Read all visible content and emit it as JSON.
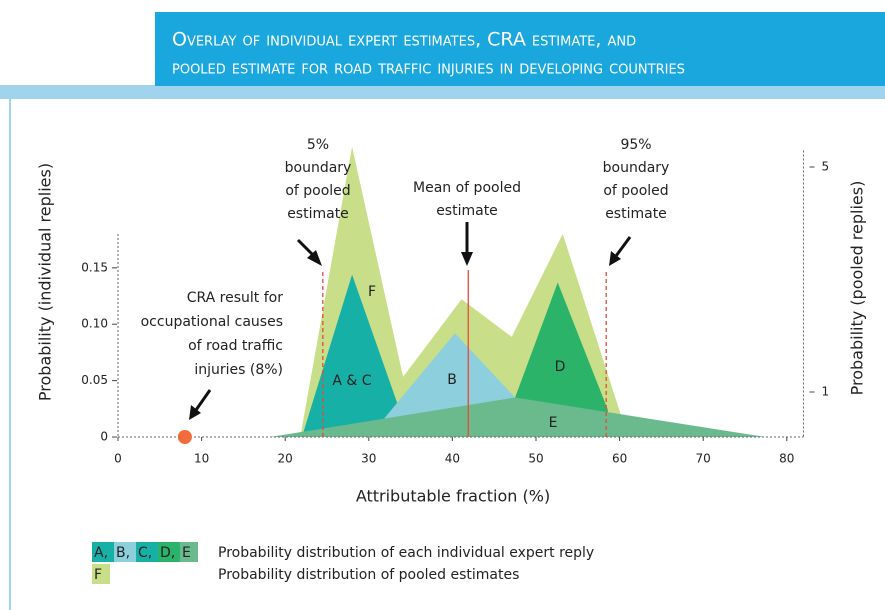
{
  "chart_data": {
    "type": "area",
    "title": [
      "Overlay of individual expert estimates, CRA estimate, and",
      "pooled estimate for road traffic injuries in developing countries"
    ],
    "xlabel": "Attributable fraction (%)",
    "ylabel": "Probability (individual replies)",
    "y2label": "Probability (pooled replies)",
    "xlim": [
      0,
      82
    ],
    "xticks": [
      0,
      10,
      20,
      30,
      40,
      50,
      60,
      70,
      80
    ],
    "ylim": [
      0,
      0.18
    ],
    "yticks": [
      0,
      0.05,
      {
        "value": 0.1,
        "label": "0.10"
      },
      0.15
    ],
    "y2lim": [
      0.2,
      5.4
    ],
    "y2ticks": [
      1,
      5
    ],
    "series": [
      {
        "name": "F",
        "color": "#c8de88",
        "axis": "y2",
        "x": [
          21.8,
          28,
          34.1,
          41.1,
          47.1,
          53.2,
          61
        ],
        "values": [
          0.2,
          5.36,
          1.27,
          2.65,
          1.98,
          3.81,
          0.2
        ]
      },
      {
        "name": "A & C",
        "color": "#16b0a6",
        "x": [
          22,
          28,
          33.5
        ],
        "values": [
          0,
          0.144,
          0.028
        ]
      },
      {
        "name": "B",
        "color": "#8dcfdc",
        "x": [
          31.9,
          40.3,
          47.5
        ],
        "values": [
          0.017,
          0.092,
          0.035
        ]
      },
      {
        "name": "D",
        "color": "#2cb36a",
        "x": [
          47.5,
          52.6,
          58.6
        ],
        "values": [
          0.035,
          0.137,
          0.024
        ]
      },
      {
        "name": "E",
        "color": "#6aba8d",
        "x": [
          18.2,
          47.5,
          77.4
        ],
        "values": [
          0,
          0.035,
          0
        ]
      }
    ],
    "reference_lines": [
      {
        "x": 24.5,
        "color": "#e84a3a",
        "dashed": true,
        "label": [
          "5%",
          "boundary",
          "of pooled",
          "estimate"
        ]
      },
      {
        "x": 41.9,
        "color": "#e84a3a",
        "dashed": false,
        "label": [
          "Mean of pooled",
          "estimate"
        ]
      },
      {
        "x": 58.4,
        "color": "#e84a3a",
        "dashed": true,
        "label": [
          "95%",
          "boundary",
          "of pooled",
          "estimate"
        ]
      }
    ],
    "cra_point": {
      "x": 8,
      "y": 0,
      "color": "#f26b3a",
      "label": [
        "CRA result for",
        "occupational causes",
        "of road traffic",
        "injuries (8%)"
      ]
    },
    "legend": [
      {
        "keys": [
          "A,",
          "B,",
          "C,",
          "D,",
          "E"
        ],
        "colors": [
          "#16b0a6",
          "#8dcfdc",
          "#16b0a6",
          "#2cb36a",
          "#6aba8d"
        ],
        "text": "Probability distribution of each individual expert reply"
      },
      {
        "keys": [
          "F"
        ],
        "colors": [
          "#c8de88"
        ],
        "text": "Probability distribution of pooled estimates"
      }
    ]
  }
}
